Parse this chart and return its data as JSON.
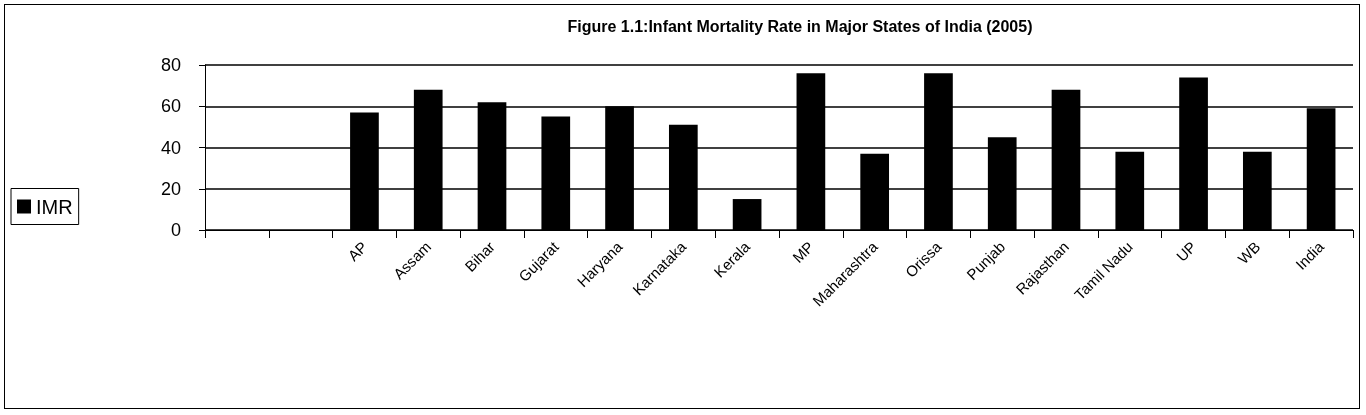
{
  "chart_data": {
    "type": "bar",
    "title": "Figure 1.1:Infant Mortality Rate in Major States of India (2005)",
    "categories": [
      null,
      null,
      "AP",
      "Assam",
      "Bihar",
      "Gujarat",
      "Haryana",
      "Karnataka",
      "Kerala",
      "MP",
      "Maharashtra",
      "Orissa",
      "Punjab",
      "Rajasthan",
      "Tamil Nadu",
      "UP",
      "WB",
      "India"
    ],
    "series": [
      {
        "name": "IMR",
        "color": "#000000",
        "values": [
          null,
          null,
          57,
          68,
          62,
          55,
          60,
          51,
          15,
          76,
          37,
          76,
          45,
          68,
          38,
          74,
          38,
          59
        ]
      }
    ],
    "ylim": [
      0,
      80
    ],
    "yticks": [
      0,
      20,
      40,
      60,
      80
    ],
    "grid": "y",
    "legend": "left"
  }
}
